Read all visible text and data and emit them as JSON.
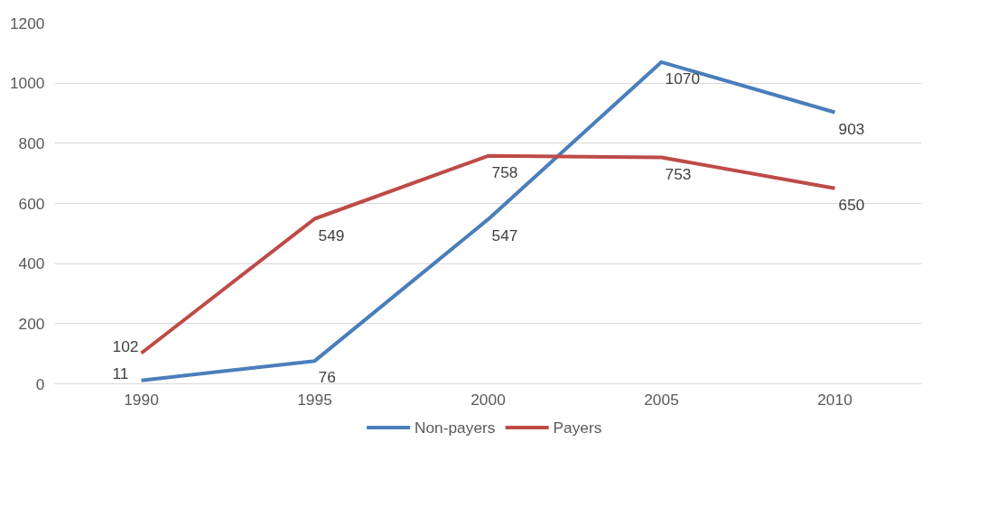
{
  "chart_data": {
    "type": "line",
    "categories": [
      "1990",
      "1995",
      "2000",
      "2005",
      "2010"
    ],
    "series": [
      {
        "name": "Non-payers",
        "color": "#4a7ebb",
        "values": [
          11,
          76,
          547,
          1070,
          903
        ]
      },
      {
        "name": "Payers",
        "color": "#be4b48",
        "values": [
          102,
          549,
          758,
          753,
          650
        ]
      }
    ],
    "ylim": [
      0,
      1200
    ],
    "yticks": [
      0,
      200,
      400,
      600,
      800,
      1000,
      1200
    ],
    "grid": "y",
    "legend": "bottom",
    "data_labels": true,
    "marker": "none",
    "line_style": "solid"
  }
}
